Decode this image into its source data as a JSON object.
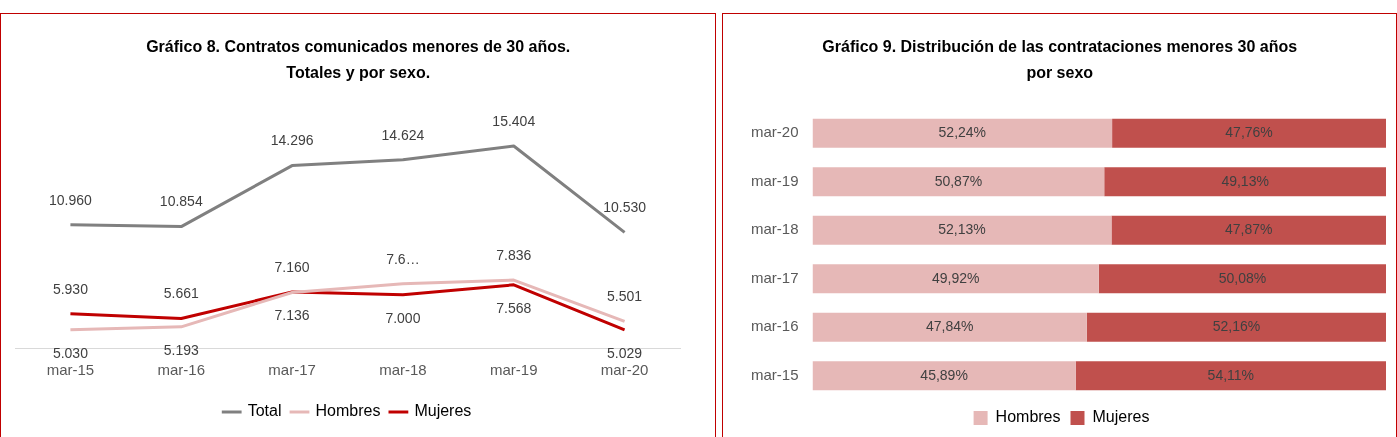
{
  "chart_data": [
    {
      "type": "line",
      "title": "Gráfico 8. Contratos comunicados menores de 30 años. Totales y por sexo.",
      "categories": [
        "mar-15",
        "mar-16",
        "mar-17",
        "mar-18",
        "mar-19",
        "mar-20"
      ],
      "legend": "bottom",
      "marker": "none",
      "tick_labels": "x",
      "grid": false,
      "series": [
        {
          "name": "Total",
          "color": "#808080",
          "values": [
            10960,
            10854,
            14296,
            14624,
            15404,
            10530
          ],
          "value_labels": [
            "10.960",
            "10.854",
            "14.296",
            "14.624",
            "15.404",
            "10.530"
          ]
        },
        {
          "name": "Hombres",
          "color": "#e6b8b7",
          "values": [
            5030,
            5193,
            7136,
            7624,
            7836,
            5501
          ],
          "value_labels": [
            "5.030",
            "5.193",
            "7.136",
            "7.6…",
            "7.836",
            "5.501"
          ]
        },
        {
          "name": "Mujeres",
          "color": "#c00000",
          "values": [
            5930,
            5661,
            7160,
            7000,
            7568,
            5029
          ],
          "value_labels": [
            "5.930",
            "5.661",
            "7.160",
            "7.000",
            "7.568",
            "5.029"
          ]
        }
      ]
    },
    {
      "type": "bar",
      "orientation": "horizontal",
      "stacked": true,
      "title": "Gráfico 9. Distribución de las contrataciones menores 30 años por sexo",
      "categories": [
        "mar-20",
        "mar-19",
        "mar-18",
        "mar-17",
        "mar-16",
        "mar-15"
      ],
      "legend": "bottom",
      "tick_labels": "y",
      "grid": false,
      "series": [
        {
          "name": "Hombres",
          "color": "#e6b8b7",
          "values": [
            52.24,
            50.87,
            52.13,
            49.92,
            47.84,
            45.89
          ],
          "value_labels": [
            "52,24%",
            "50,87%",
            "52,13%",
            "49,92%",
            "47,84%",
            "45,89%"
          ]
        },
        {
          "name": "Mujeres",
          "color": "#c0504d",
          "values": [
            47.76,
            49.13,
            47.87,
            50.08,
            52.16,
            54.11
          ],
          "value_labels": [
            "47,76%",
            "49,13%",
            "47,87%",
            "50,08%",
            "52,16%",
            "54,11%"
          ]
        }
      ]
    }
  ]
}
